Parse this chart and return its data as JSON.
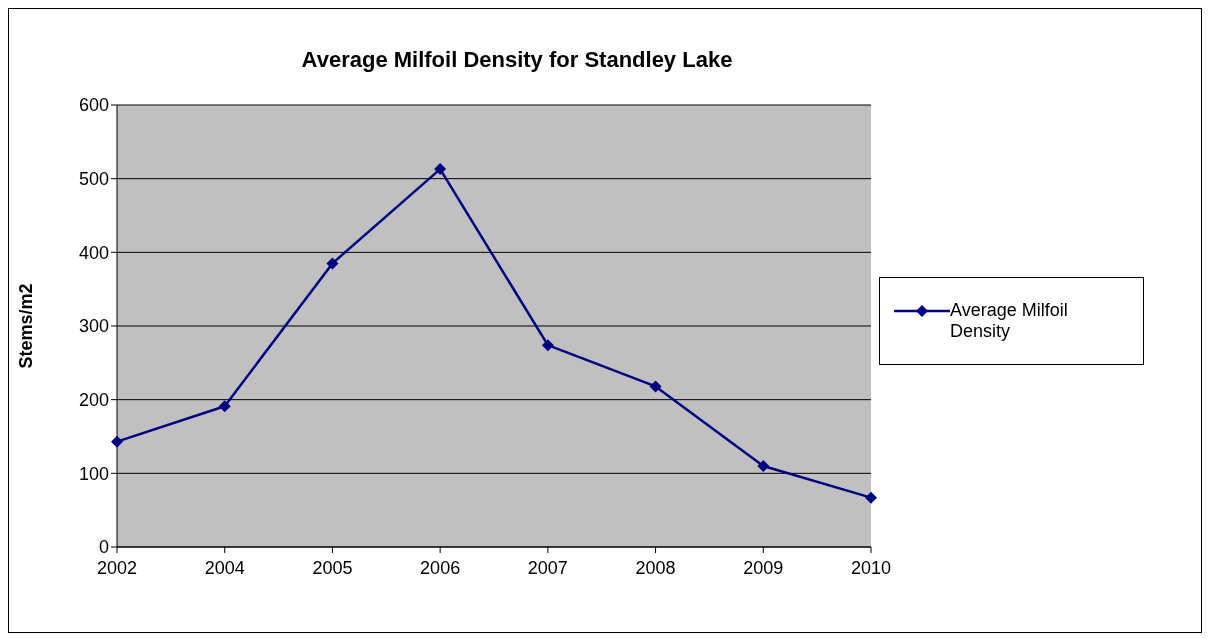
{
  "chart_data": {
    "type": "line",
    "title": "Average Milfoil Density for Standley Lake",
    "ylabel": "Stems/m2",
    "categories": [
      "2002",
      "2004",
      "2005",
      "2006",
      "2007",
      "2008",
      "2009",
      "2010"
    ],
    "series": [
      {
        "name": "Average Milfoil Density",
        "color": "#000080",
        "values": [
          143,
          191,
          385,
          513,
          274,
          218,
          110,
          67
        ]
      }
    ],
    "ylim": [
      0,
      600
    ],
    "yticks": [
      0,
      100,
      200,
      300,
      400,
      500,
      600
    ],
    "grid": "y",
    "legend": "right",
    "marker": "diamond",
    "line_style": "solid"
  }
}
